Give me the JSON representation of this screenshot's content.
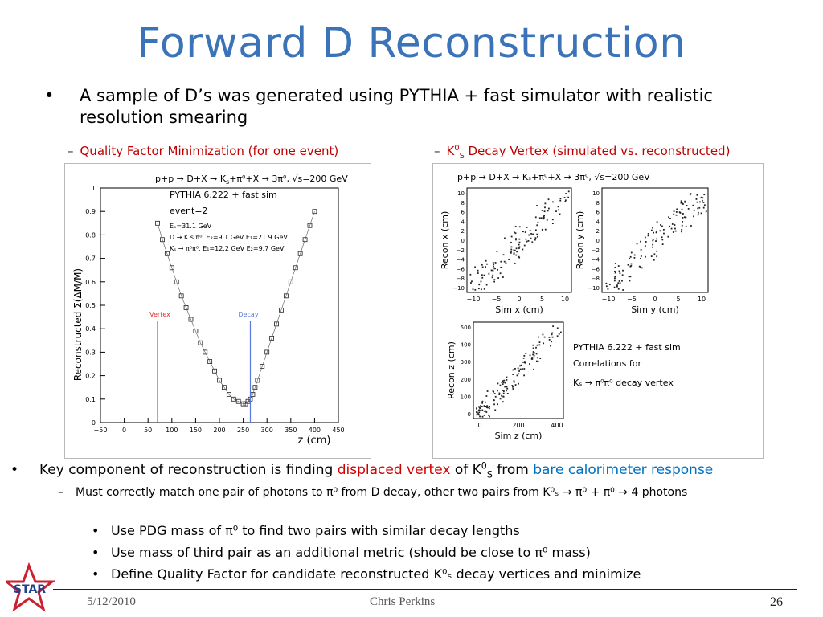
{
  "title": "Forward D Reconstruction",
  "bullet1": "A sample of D’s was generated using PYTHIA + fast simulator with realistic resolution smearing",
  "caption_left": "Quality Factor Minimization (for one event)",
  "caption_right": {
    "k": "K",
    "sup": "0",
    "sub": "S",
    "rest": " Decay Vertex (simulated vs. reconstructed)"
  },
  "left_plot": {
    "reaction": "p+p → D+X → K",
    "reaction_sub": "s",
    "reaction_tail": "+π⁰+X → 3π⁰, √s=200 GeV",
    "info": [
      "PYTHIA 6.222 + fast sim",
      "event=2",
      "Eₚ=31.1 GeV",
      "D → K s π⁰,  E₂=9.1 GeV  E₁=21.9 GeV",
      "Kₛ → π⁰π⁰,  E₁=12.2 GeV  E₂=9.7 GeV"
    ],
    "ylabel": "Reconstructed Σ(ΔM/M)",
    "xlabel": "z (cm)",
    "xticks": [
      "−50",
      "0",
      "50",
      "100",
      "150",
      "200",
      "250",
      "300",
      "350",
      "400",
      "450"
    ],
    "yticks": [
      "0",
      "0.1",
      "0.2",
      "0.3",
      "0.4",
      "0.5",
      "0.6",
      "0.7",
      "0.8",
      "0.9",
      "1"
    ],
    "vertex_label": "Vertex",
    "decay_label": "Decay",
    "colors": {
      "vertex": "#e03030",
      "decay": "#5a78e0"
    }
  },
  "right_plot": {
    "reaction": "p+p → D+X → Kₛ+π⁰+X → 3π⁰, √s=200 GeV",
    "x_panel": {
      "ylabel": "Recon x (cm)",
      "xlabel": "Sim x (cm)",
      "ticks": [
        "−10",
        "−5",
        "0",
        "5",
        "10"
      ]
    },
    "y_panel": {
      "ylabel": "Recon y (cm)",
      "xlabel": "Sim y (cm)",
      "ticks": [
        "−10",
        "−5",
        "0",
        "5",
        "10"
      ]
    },
    "z_panel": {
      "ylabel": "Recon z (cm)",
      "xlabel": "Sim z (cm)",
      "xticks": [
        "0",
        "200",
        "400"
      ],
      "yticks": [
        "0",
        "100",
        "200",
        "300",
        "400",
        "500"
      ]
    },
    "y_side_ticks": [
      "10",
      "8",
      "6",
      "4",
      "2",
      "0",
      "−2",
      "−4",
      "−6",
      "−8",
      "−10"
    ],
    "legend": [
      "PYTHIA 6.222 + fast sim",
      "Correlations for",
      "Kₛ → π⁰π⁰ decay vertex"
    ]
  },
  "bullet2": {
    "pre": "Key component of reconstruction is finding ",
    "red": "displaced vertex",
    "mid": " of K",
    "sup": "0",
    "sub": "S",
    "from": " from ",
    "blue": "bare calorimeter response"
  },
  "bullet3": {
    "text": "Must correctly match one pair of photons to π⁰ from D decay, other two pairs from K⁰ₛ → π⁰ + π⁰ → 4 photons"
  },
  "sub_bullets": [
    "Use PDG mass of π⁰ to find two pairs with similar decay lengths",
    "Use mass of third pair as an additional metric (should be close to π⁰ mass)",
    "Define Quality Factor for candidate reconstructed K⁰ₛ decay vertices  and minimize"
  ],
  "footer": {
    "date": "5/12/2010",
    "author": "Chris Perkins",
    "page": "26",
    "logo_text": "STAR"
  },
  "chart_data": {
    "type": "scatter",
    "title": "Quality Factor Minimization (for one event)",
    "xlabel": "z (cm)",
    "ylabel": "Reconstructed Σ(ΔM/M)",
    "xlim": [
      -50,
      450
    ],
    "ylim": [
      0,
      1
    ],
    "series": [
      {
        "name": "",
        "x": [
          70,
          80,
          90,
          100,
          110,
          120,
          130,
          140,
          150,
          160,
          170,
          180,
          190,
          200,
          210,
          220,
          230,
          240,
          250,
          255,
          260,
          265,
          270,
          275,
          280,
          290,
          300,
          310,
          320,
          330,
          340,
          350,
          360,
          370,
          380,
          390,
          400
        ],
        "y": [
          0.85,
          0.78,
          0.72,
          0.66,
          0.6,
          0.54,
          0.49,
          0.44,
          0.39,
          0.34,
          0.3,
          0.26,
          0.22,
          0.18,
          0.15,
          0.12,
          0.1,
          0.09,
          0.08,
          0.08,
          0.09,
          0.1,
          0.12,
          0.15,
          0.18,
          0.24,
          0.3,
          0.36,
          0.42,
          0.48,
          0.54,
          0.6,
          0.66,
          0.72,
          0.78,
          0.84,
          0.9
        ]
      }
    ],
    "annotations": [
      {
        "label": "Vertex",
        "x": 70
      },
      {
        "label": "Decay",
        "x": 265
      }
    ]
  }
}
